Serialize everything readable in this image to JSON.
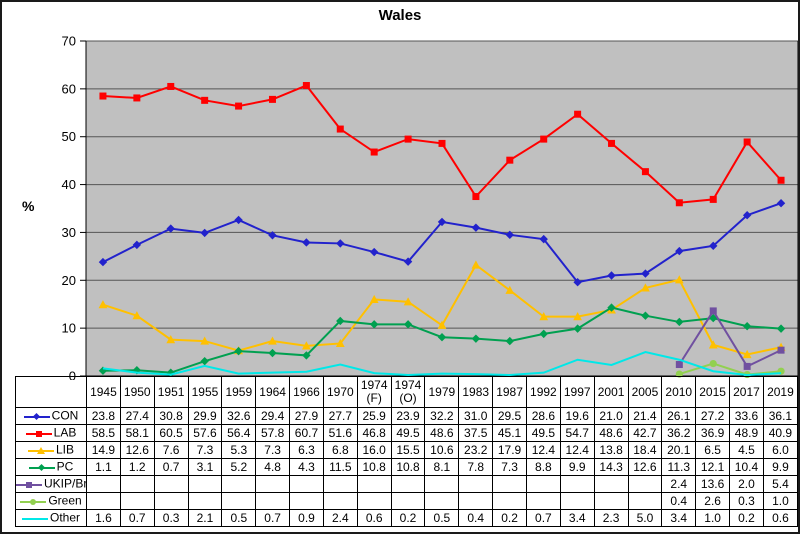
{
  "title": "Wales",
  "ylabel": "%",
  "chart_data": {
    "type": "line",
    "title": "Wales",
    "xlabel": "",
    "ylabel": "%",
    "ylim": [
      0,
      70
    ],
    "ytick_step": 10,
    "grid": "horizontal",
    "legend_position": "data-table-left",
    "plot_bg_color": "#c0c0c0",
    "gridline_color": "#555555",
    "categories": [
      "1945",
      "1950",
      "1951",
      "1955",
      "1959",
      "1964",
      "1966",
      "1970",
      "1974 (F)",
      "1974 (O)",
      "1979",
      "1983",
      "1987",
      "1992",
      "1997",
      "2001",
      "2005",
      "2010",
      "2015",
      "2017",
      "2019"
    ],
    "series": [
      {
        "name": "CON",
        "color": "#2222cc",
        "marker": "diamond",
        "values": [
          23.8,
          27.4,
          30.8,
          29.9,
          32.6,
          29.4,
          27.9,
          27.7,
          25.9,
          23.9,
          32.2,
          31.0,
          29.5,
          28.6,
          19.6,
          21.0,
          21.4,
          26.1,
          27.2,
          33.6,
          36.1
        ]
      },
      {
        "name": "LAB",
        "color": "#ff0000",
        "marker": "square",
        "values": [
          58.5,
          58.1,
          60.5,
          57.6,
          56.4,
          57.8,
          60.7,
          51.6,
          46.8,
          49.5,
          48.6,
          37.5,
          45.1,
          49.5,
          54.7,
          48.6,
          42.7,
          36.2,
          36.9,
          48.9,
          40.9
        ]
      },
      {
        "name": "LIB",
        "color": "#ffc000",
        "marker": "triangle",
        "values": [
          14.9,
          12.6,
          7.6,
          7.3,
          5.3,
          7.3,
          6.3,
          6.8,
          16.0,
          15.5,
          10.6,
          23.2,
          17.9,
          12.4,
          12.4,
          13.8,
          18.4,
          20.1,
          6.5,
          4.5,
          6.0
        ]
      },
      {
        "name": "PC",
        "color": "#00a050",
        "marker": "diamond",
        "values": [
          1.1,
          1.2,
          0.7,
          3.1,
          5.2,
          4.8,
          4.3,
          11.5,
          10.8,
          10.8,
          8.1,
          7.8,
          7.3,
          8.8,
          9.9,
          14.3,
          12.6,
          11.3,
          12.1,
          10.4,
          9.9
        ]
      },
      {
        "name": "UKIP/Br",
        "color": "#7050a0",
        "marker": "square",
        "values": [
          null,
          null,
          null,
          null,
          null,
          null,
          null,
          null,
          null,
          null,
          null,
          null,
          null,
          null,
          null,
          null,
          null,
          2.4,
          13.6,
          2.0,
          5.4
        ]
      },
      {
        "name": "Green",
        "color": "#92d050",
        "marker": "circle",
        "values": [
          null,
          null,
          null,
          null,
          null,
          null,
          null,
          null,
          null,
          null,
          null,
          null,
          null,
          null,
          null,
          null,
          null,
          0.4,
          2.6,
          0.3,
          1.0
        ]
      },
      {
        "name": "Other",
        "color": "#00e8e8",
        "marker": "none",
        "values": [
          1.6,
          0.7,
          0.3,
          2.1,
          0.5,
          0.7,
          0.9,
          2.4,
          0.6,
          0.2,
          0.5,
          0.4,
          0.2,
          0.7,
          3.4,
          2.3,
          5.0,
          3.4,
          1.0,
          0.2,
          0.6
        ]
      }
    ]
  }
}
